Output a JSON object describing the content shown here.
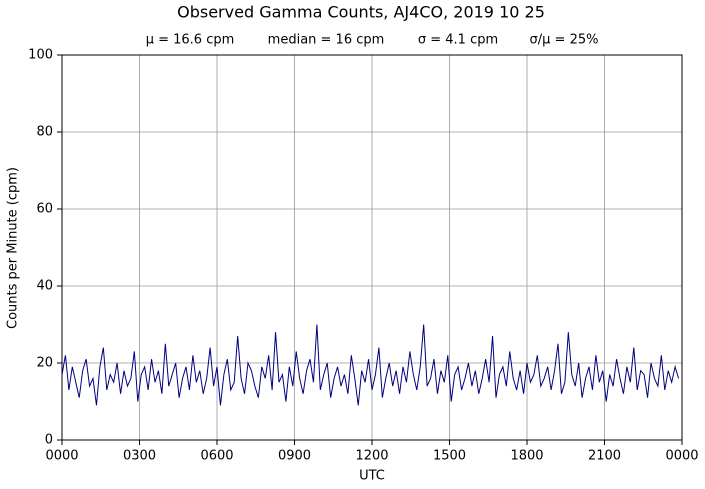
{
  "chart_data": {
    "type": "line",
    "title": "Observed Gamma Counts, AJ4CO, 2019 10 25",
    "annotations": [
      "μ = 16.6 cpm",
      "median = 16 cpm",
      "σ = 4.1 cpm",
      "σ/μ = 25%"
    ],
    "x_label": "UTC",
    "y_label": "Counts per Minute (cpm)",
    "xlim": [
      0,
      1440
    ],
    "ylim": [
      0,
      100
    ],
    "xticks": [
      {
        "value": 0,
        "label": "0000"
      },
      {
        "value": 180,
        "label": "0300"
      },
      {
        "value": 360,
        "label": "0600"
      },
      {
        "value": 540,
        "label": "0900"
      },
      {
        "value": 720,
        "label": "1200"
      },
      {
        "value": 900,
        "label": "1500"
      },
      {
        "value": 1080,
        "label": "1800"
      },
      {
        "value": 1260,
        "label": "2100"
      },
      {
        "value": 1440,
        "label": "0000"
      }
    ],
    "yticks": [
      0,
      20,
      40,
      60,
      80,
      100
    ],
    "grid": true,
    "series": [
      {
        "color": "#000080",
        "x": [
          0,
          8,
          16,
          24,
          32,
          40,
          48,
          56,
          64,
          72,
          80,
          88,
          96,
          104,
          112,
          120,
          128,
          136,
          144,
          152,
          160,
          168,
          176,
          184,
          192,
          200,
          208,
          216,
          224,
          232,
          240,
          248,
          256,
          264,
          272,
          280,
          288,
          296,
          304,
          312,
          320,
          328,
          336,
          344,
          352,
          360,
          368,
          376,
          384,
          392,
          400,
          408,
          416,
          424,
          432,
          440,
          448,
          456,
          464,
          472,
          480,
          488,
          496,
          504,
          512,
          520,
          528,
          536,
          544,
          552,
          560,
          568,
          576,
          584,
          592,
          600,
          608,
          616,
          624,
          632,
          640,
          648,
          656,
          664,
          672,
          680,
          688,
          696,
          704,
          712,
          720,
          728,
          736,
          744,
          752,
          760,
          768,
          776,
          784,
          792,
          800,
          808,
          816,
          824,
          832,
          840,
          848,
          856,
          864,
          872,
          880,
          888,
          896,
          904,
          912,
          920,
          928,
          936,
          944,
          952,
          960,
          968,
          976,
          984,
          992,
          1000,
          1008,
          1016,
          1024,
          1032,
          1040,
          1048,
          1056,
          1064,
          1072,
          1080,
          1088,
          1096,
          1104,
          1112,
          1120,
          1128,
          1136,
          1144,
          1152,
          1160,
          1168,
          1176,
          1184,
          1192,
          1200,
          1208,
          1216,
          1224,
          1232,
          1240,
          1248,
          1256,
          1264,
          1272,
          1280,
          1288,
          1296,
          1304,
          1312,
          1320,
          1328,
          1336,
          1344,
          1352,
          1360,
          1368,
          1376,
          1384,
          1392,
          1400,
          1408,
          1416,
          1424,
          1432
        ],
        "values": [
          17,
          22,
          13,
          19,
          15,
          11,
          18,
          21,
          14,
          16,
          9,
          19,
          24,
          13,
          17,
          15,
          20,
          12,
          18,
          14,
          16,
          23,
          10,
          17,
          19,
          13,
          21,
          15,
          18,
          12,
          25,
          14,
          17,
          20,
          11,
          16,
          19,
          13,
          22,
          15,
          18,
          12,
          16,
          24,
          14,
          19,
          9,
          17,
          21,
          13,
          15,
          27,
          16,
          12,
          20,
          18,
          14,
          11,
          19,
          16,
          22,
          13,
          28,
          15,
          17,
          10,
          19,
          14,
          23,
          16,
          12,
          18,
          21,
          15,
          30,
          13,
          17,
          20,
          11,
          16,
          19,
          14,
          17,
          12,
          22,
          16,
          9,
          18,
          15,
          21,
          13,
          17,
          24,
          11,
          16,
          20,
          14,
          18,
          12,
          19,
          15,
          23,
          17,
          13,
          19,
          30,
          14,
          16,
          21,
          12,
          18,
          15,
          22,
          10,
          17,
          19,
          13,
          16,
          20,
          14,
          18,
          12,
          16,
          21,
          15,
          27,
          11,
          17,
          19,
          14,
          23,
          16,
          13,
          18,
          12,
          20,
          15,
          17,
          22,
          14,
          16,
          19,
          13,
          18,
          25,
          12,
          15,
          28,
          17,
          14,
          20,
          11,
          16,
          19,
          13,
          22,
          15,
          18,
          10,
          17,
          14,
          21,
          16,
          12,
          19,
          15,
          24,
          13,
          18,
          17,
          11,
          20,
          16,
          14,
          22,
          13,
          18,
          15,
          19,
          16
        ]
      }
    ]
  }
}
